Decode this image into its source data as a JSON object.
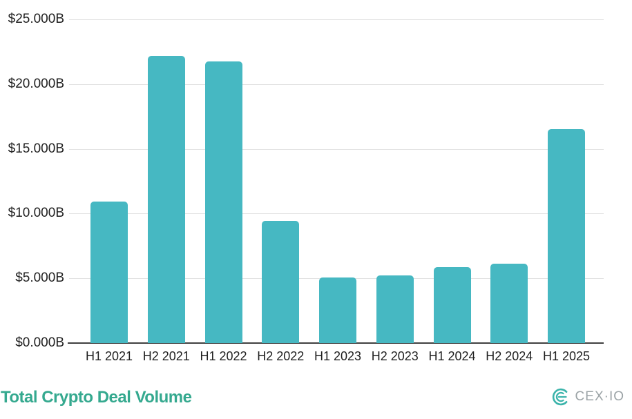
{
  "branding": {
    "logo_text": "CEX·IO",
    "logo_mark_icon": "cexio-logo-mark",
    "logo_mark_color": "#3cb4ab",
    "logo_text_color": "#9ba3a6"
  },
  "chart_data": {
    "type": "bar",
    "title": "Total Crypto Deal Volume",
    "title_color": "#35a98f",
    "categories": [
      "H1 2021",
      "H2 2021",
      "H1 2022",
      "H2 2022",
      "H1 2023",
      "H2 2023",
      "H1 2024",
      "H2 2024",
      "H1 2025"
    ],
    "values": [
      10.95,
      22.2,
      21.75,
      9.45,
      5.05,
      5.2,
      5.85,
      6.15,
      16.5
    ],
    "unit": "$B",
    "xlabel": "",
    "ylabel": "",
    "ylim": [
      0,
      25
    ],
    "yticks": [
      {
        "value": 0,
        "label": "$0.000B"
      },
      {
        "value": 5,
        "label": "$5.000B"
      },
      {
        "value": 10,
        "label": "$10.000B"
      },
      {
        "value": 15,
        "label": "$15.000B"
      },
      {
        "value": 20,
        "label": "$20.000B"
      },
      {
        "value": 25,
        "label": "$25.000B"
      }
    ],
    "grid": true,
    "legend": "none",
    "bar_color": "#46b8c2",
    "gridline_color": "#e2e2e2",
    "axis_line_color": "#3f3f3f",
    "tick_label_color": "#1f1f1f"
  }
}
